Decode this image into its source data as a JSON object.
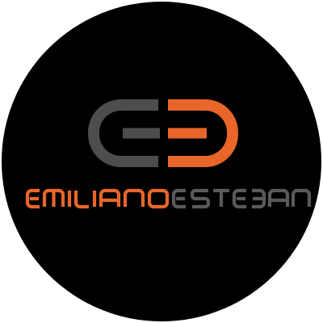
{
  "logo": {
    "monogram": "EE",
    "name_first": "EMILIANO",
    "name_last": "ESTEBAN",
    "colors": {
      "background": "#000000",
      "accent_orange": "#e8662a",
      "gray": "#4d4d4d",
      "page": "#ffffff"
    }
  }
}
